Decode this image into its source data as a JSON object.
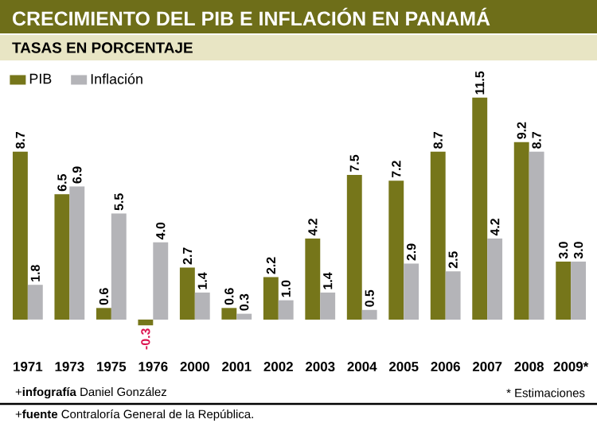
{
  "chart_data": {
    "type": "bar",
    "title": "CRECIMIENTO DEL PIB E INFLACIÓN EN PANAMÁ",
    "subtitle": "TASAS EN PORCENTAJE",
    "categories": [
      "1971",
      "1973",
      "1975",
      "1976",
      "2000",
      "2001",
      "2002",
      "2003",
      "2004",
      "2005",
      "2006",
      "2007",
      "2008",
      "2009*"
    ],
    "series": [
      {
        "name": "PIB",
        "color": "#76761a",
        "values": [
          8.7,
          6.5,
          0.6,
          -0.3,
          2.7,
          0.6,
          2.2,
          4.2,
          7.5,
          7.2,
          8.7,
          11.5,
          9.2,
          3.0
        ],
        "value_labels": [
          "8.7",
          "6.5",
          "0.6",
          "-0.3",
          "2.7",
          "0.6",
          "2.2",
          "4.2",
          "7.5",
          "7.2",
          "8.7",
          "11.5",
          "9.2",
          "3.0"
        ]
      },
      {
        "name": "Inflación",
        "color": "#b4b4b8",
        "values": [
          1.8,
          6.9,
          5.5,
          4.0,
          1.4,
          0.3,
          1.0,
          1.4,
          0.5,
          2.9,
          2.5,
          4.2,
          8.7,
          3.0
        ],
        "value_labels": [
          "1.8",
          "6.9",
          "5.5",
          "4.0",
          "1.4",
          "0.3",
          "1.0",
          "1.4",
          "0.5",
          "2.9",
          "2.5",
          "4.2",
          "8.7",
          "3.0"
        ]
      }
    ],
    "legend": "top left",
    "annotations": [
      "+**infografía** Daniel González",
      "* Estimaciones",
      "+**fuente** Contraloría General de la República."
    ]
  }
}
